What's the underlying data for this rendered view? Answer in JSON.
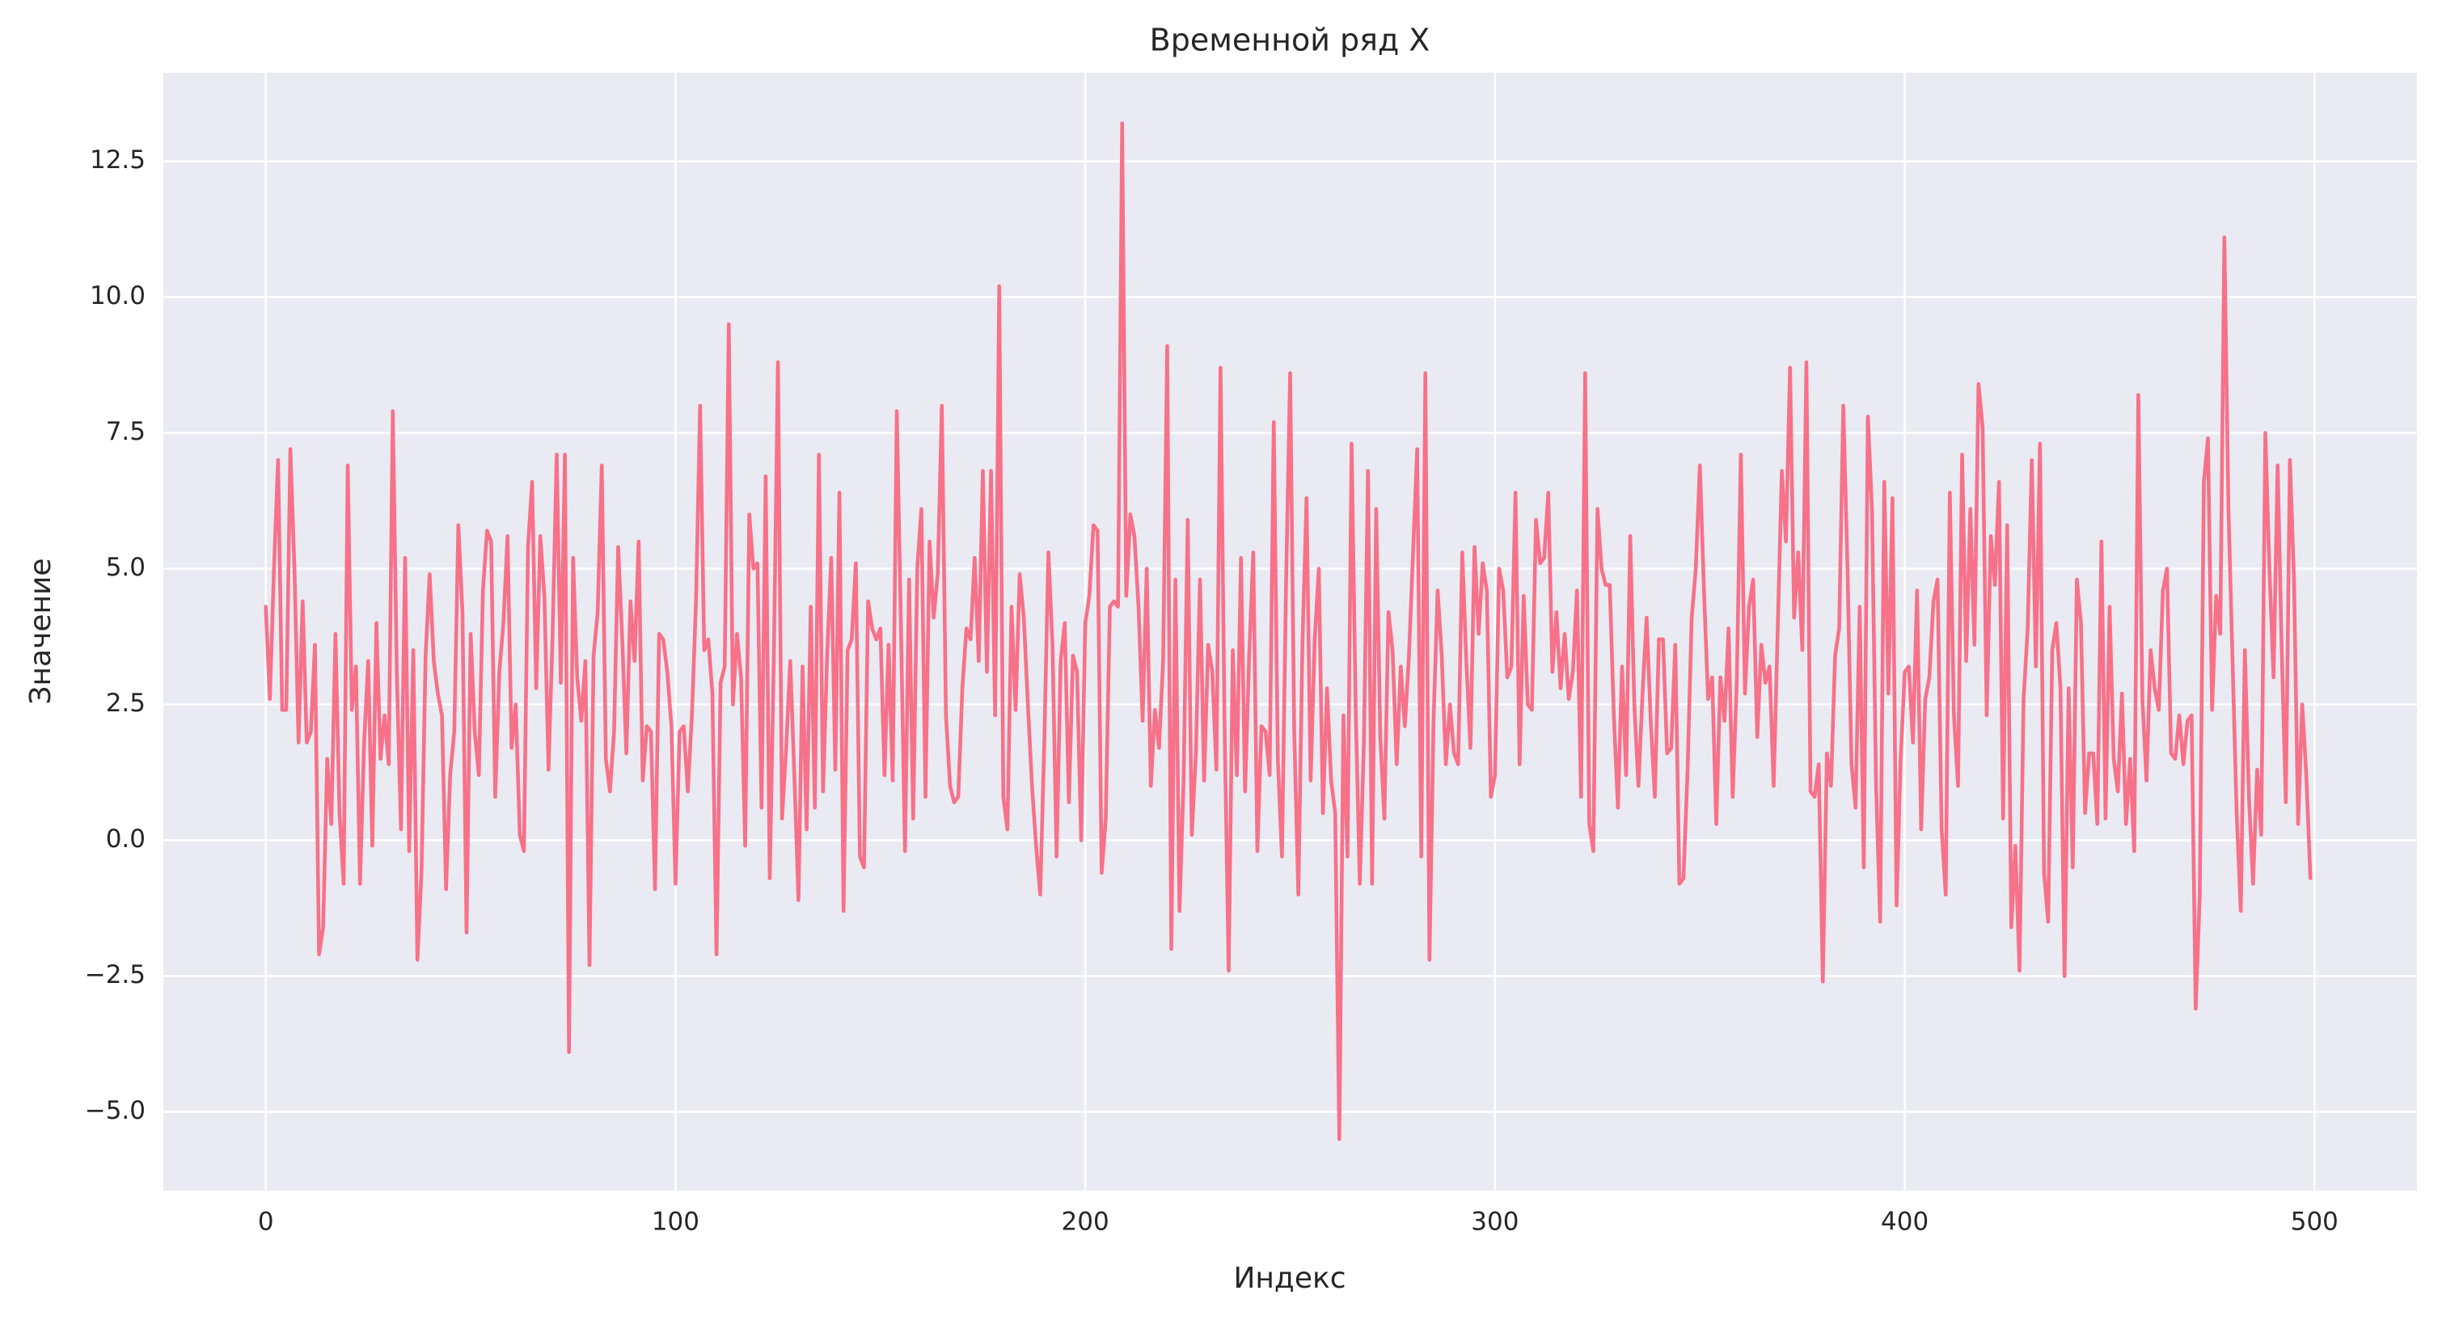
{
  "chart_data": {
    "type": "line",
    "title": "Временной ряд X",
    "x_label": "Индекс",
    "y_label": "Значение",
    "color": "#f77189",
    "grid": true,
    "background": "#eaeaf2",
    "xlim": [
      -25,
      525
    ],
    "ylim": [
      -6.45,
      14.13
    ],
    "xticks": [
      0,
      100,
      200,
      300,
      400,
      500
    ],
    "yticks": [
      {
        "value": -5,
        "label": "−5.0"
      },
      {
        "value": -2.5,
        "label": "−2.5"
      },
      {
        "value": 0,
        "label": "0.0"
      },
      2.5,
      {
        "value": 5,
        "label": "5.0"
      },
      7.5,
      {
        "value": 10,
        "label": "10.0"
      },
      12.5
    ],
    "x": [
      0,
      1,
      2,
      3,
      4,
      5,
      6,
      7,
      8,
      9,
      10,
      11,
      12,
      13,
      14,
      15,
      16,
      17,
      18,
      19,
      20,
      21,
      22,
      23,
      24,
      25,
      26,
      27,
      28,
      29,
      30,
      31,
      32,
      33,
      34,
      35,
      36,
      37,
      38,
      39,
      40,
      41,
      42,
      43,
      44,
      45,
      46,
      47,
      48,
      49,
      50,
      51,
      52,
      53,
      54,
      55,
      56,
      57,
      58,
      59,
      60,
      61,
      62,
      63,
      64,
      65,
      66,
      67,
      68,
      69,
      70,
      71,
      72,
      73,
      74,
      75,
      76,
      77,
      78,
      79,
      80,
      81,
      82,
      83,
      84,
      85,
      86,
      87,
      88,
      89,
      90,
      91,
      92,
      93,
      94,
      95,
      96,
      97,
      98,
      99,
      100,
      101,
      102,
      103,
      104,
      105,
      106,
      107,
      108,
      109,
      110,
      111,
      112,
      113,
      114,
      115,
      116,
      117,
      118,
      119,
      120,
      121,
      122,
      123,
      124,
      125,
      126,
      127,
      128,
      129,
      130,
      131,
      132,
      133,
      134,
      135,
      136,
      137,
      138,
      139,
      140,
      141,
      142,
      143,
      144,
      145,
      146,
      147,
      148,
      149,
      150,
      151,
      152,
      153,
      154,
      155,
      156,
      157,
      158,
      159,
      160,
      161,
      162,
      163,
      164,
      165,
      166,
      167,
      168,
      169,
      170,
      171,
      172,
      173,
      174,
      175,
      176,
      177,
      178,
      179,
      180,
      181,
      182,
      183,
      184,
      185,
      186,
      187,
      188,
      189,
      190,
      191,
      192,
      193,
      194,
      195,
      196,
      197,
      198,
      199,
      200,
      201,
      202,
      203,
      204,
      205,
      206,
      207,
      208,
      209,
      210,
      211,
      212,
      213,
      214,
      215,
      216,
      217,
      218,
      219,
      220,
      221,
      222,
      223,
      224,
      225,
      226,
      227,
      228,
      229,
      230,
      231,
      232,
      233,
      234,
      235,
      236,
      237,
      238,
      239,
      240,
      241,
      242,
      243,
      244,
      245,
      246,
      247,
      248,
      249,
      250,
      251,
      252,
      253,
      254,
      255,
      256,
      257,
      258,
      259,
      260,
      261,
      262,
      263,
      264,
      265,
      266,
      267,
      268,
      269,
      270,
      271,
      272,
      273,
      274,
      275,
      276,
      277,
      278,
      279,
      280,
      281,
      282,
      283,
      284,
      285,
      286,
      287,
      288,
      289,
      290,
      291,
      292,
      293,
      294,
      295,
      296,
      297,
      298,
      299,
      300,
      301,
      302,
      303,
      304,
      305,
      306,
      307,
      308,
      309,
      310,
      311,
      312,
      313,
      314,
      315,
      316,
      317,
      318,
      319,
      320,
      321,
      322,
      323,
      324,
      325,
      326,
      327,
      328,
      329,
      330,
      331,
      332,
      333,
      334,
      335,
      336,
      337,
      338,
      339,
      340,
      341,
      342,
      343,
      344,
      345,
      346,
      347,
      348,
      349,
      350,
      351,
      352,
      353,
      354,
      355,
      356,
      357,
      358,
      359,
      360,
      361,
      362,
      363,
      364,
      365,
      366,
      367,
      368,
      369,
      370,
      371,
      372,
      373,
      374,
      375,
      376,
      377,
      378,
      379,
      380,
      381,
      382,
      383,
      384,
      385,
      386,
      387,
      388,
      389,
      390,
      391,
      392,
      393,
      394,
      395,
      396,
      397,
      398,
      399,
      400,
      401,
      402,
      403,
      404,
      405,
      406,
      407,
      408,
      409,
      410,
      411,
      412,
      413,
      414,
      415,
      416,
      417,
      418,
      419,
      420,
      421,
      422,
      423,
      424,
      425,
      426,
      427,
      428,
      429,
      430,
      431,
      432,
      433,
      434,
      435,
      436,
      437,
      438,
      439,
      440,
      441,
      442,
      443,
      444,
      445,
      446,
      447,
      448,
      449,
      450,
      451,
      452,
      453,
      454,
      455,
      456,
      457,
      458,
      459,
      460,
      461,
      462,
      463,
      464,
      465,
      466,
      467,
      468,
      469,
      470,
      471,
      472,
      473,
      474,
      475,
      476,
      477,
      478,
      479,
      480,
      481,
      482,
      483,
      484,
      485,
      486,
      487,
      488,
      489,
      490,
      491,
      492,
      493,
      494,
      495,
      496,
      497,
      498,
      499
    ],
    "values": [
      4.3,
      2.6,
      5.0,
      7.0,
      2.4,
      2.4,
      7.2,
      5.0,
      1.8,
      4.4,
      1.8,
      2.0,
      3.6,
      -2.1,
      -1.6,
      1.5,
      0.3,
      3.8,
      0.5,
      -0.8,
      6.9,
      2.4,
      3.2,
      -0.8,
      1.8,
      3.3,
      -0.1,
      4.0,
      1.5,
      2.3,
      1.4,
      7.9,
      3.0,
      0.2,
      5.2,
      -0.2,
      3.5,
      -2.2,
      -0.6,
      3.4,
      4.9,
      3.3,
      2.7,
      2.3,
      -0.9,
      1.2,
      2.0,
      5.8,
      4.2,
      -1.7,
      3.8,
      2.0,
      1.2,
      4.6,
      5.7,
      5.5,
      0.8,
      3.1,
      4.0,
      5.6,
      1.7,
      2.5,
      0.1,
      -0.2,
      5.4,
      6.6,
      2.8,
      5.6,
      4.5,
      1.3,
      3.8,
      7.1,
      2.9,
      7.1,
      -3.9,
      5.2,
      3.0,
      2.2,
      3.3,
      -2.3,
      3.4,
      4.2,
      6.9,
      1.5,
      0.9,
      2.0,
      5.4,
      3.7,
      1.6,
      4.4,
      3.3,
      5.5,
      1.1,
      2.1,
      2.0,
      -0.9,
      3.8,
      3.7,
      3.1,
      2.1,
      -0.8,
      2.0,
      2.1,
      0.9,
      2.3,
      4.4,
      8.0,
      3.5,
      3.7,
      2.7,
      -2.1,
      2.9,
      3.2,
      9.5,
      2.5,
      3.8,
      3.0,
      -0.1,
      6.0,
      5.0,
      5.1,
      0.6,
      6.7,
      -0.7,
      3.4,
      8.8,
      0.4,
      1.7,
      3.3,
      1.2,
      -1.1,
      3.2,
      0.2,
      4.3,
      0.6,
      7.1,
      0.9,
      3.4,
      5.2,
      1.3,
      6.4,
      -1.3,
      3.5,
      3.7,
      5.1,
      -0.3,
      -0.5,
      4.4,
      3.9,
      3.7,
      3.9,
      1.2,
      3.6,
      1.1,
      7.9,
      4.0,
      -0.2,
      4.8,
      0.4,
      5.0,
      6.1,
      0.8,
      5.5,
      4.1,
      4.9,
      8.0,
      2.3,
      1.0,
      0.7,
      0.8,
      2.8,
      3.9,
      3.7,
      5.2,
      3.3,
      6.8,
      3.1,
      6.8,
      2.3,
      10.2,
      0.8,
      0.2,
      4.3,
      2.4,
      4.9,
      4.1,
      2.5,
      1.0,
      -0.1,
      -1.0,
      1.8,
      5.3,
      3.6,
      -0.3,
      3.3,
      4.0,
      0.7,
      3.4,
      3.1,
      0.0,
      4.0,
      4.5,
      5.8,
      5.7,
      -0.6,
      0.4,
      4.3,
      4.4,
      4.3,
      13.2,
      4.5,
      6.0,
      5.6,
      4.3,
      2.2,
      5.0,
      1.0,
      2.4,
      1.7,
      3.3,
      9.1,
      -2.0,
      4.8,
      -1.3,
      1.1,
      5.9,
      0.1,
      1.6,
      4.8,
      1.1,
      3.6,
      3.1,
      1.3,
      8.7,
      2.1,
      -2.4,
      3.5,
      1.2,
      5.2,
      0.9,
      3.4,
      5.3,
      -0.2,
      2.1,
      2.0,
      1.2,
      7.7,
      1.5,
      -0.3,
      4.7,
      8.6,
      2.0,
      -1.0,
      3.6,
      6.3,
      1.1,
      3.7,
      5.0,
      0.5,
      2.8,
      1.1,
      0.5,
      -5.5,
      2.3,
      -0.3,
      7.3,
      2.4,
      -0.8,
      1.8,
      6.8,
      -0.8,
      6.1,
      1.9,
      0.4,
      4.2,
      3.5,
      1.4,
      3.2,
      2.1,
      3.4,
      5.3,
      7.2,
      -0.3,
      8.6,
      -2.2,
      2.2,
      4.6,
      3.4,
      1.4,
      2.5,
      1.6,
      1.4,
      5.3,
      3.3,
      1.7,
      5.4,
      3.8,
      5.1,
      4.6,
      0.8,
      1.2,
      5.0,
      4.6,
      3.0,
      3.2,
      6.4,
      1.4,
      4.5,
      2.5,
      2.4,
      5.9,
      5.1,
      5.2,
      6.4,
      3.1,
      4.2,
      2.8,
      3.8,
      2.6,
      3.1,
      4.6,
      0.8,
      8.6,
      0.3,
      -0.2,
      6.1,
      5.0,
      4.7,
      4.7,
      2.3,
      0.6,
      3.2,
      1.2,
      5.6,
      2.5,
      1.0,
      2.7,
      4.1,
      2.2,
      0.8,
      3.7,
      3.7,
      1.6,
      1.7,
      3.6,
      -0.8,
      -0.7,
      1.3,
      4.1,
      5.0,
      6.9,
      4.6,
      2.6,
      3.0,
      0.3,
      3.0,
      2.2,
      3.9,
      0.8,
      2.9,
      7.1,
      2.7,
      4.3,
      4.8,
      1.9,
      3.6,
      2.9,
      3.2,
      1.0,
      3.9,
      6.8,
      5.5,
      8.7,
      4.1,
      5.3,
      3.5,
      8.8,
      0.9,
      0.8,
      1.4,
      -2.6,
      1.6,
      1.0,
      3.4,
      3.9,
      8.0,
      5.1,
      1.4,
      0.6,
      4.3,
      -0.5,
      7.8,
      6.1,
      1.0,
      -1.5,
      6.6,
      2.7,
      6.3,
      -1.2,
      1.5,
      3.1,
      3.2,
      1.8,
      4.6,
      0.2,
      2.6,
      3.0,
      4.4,
      4.8,
      0.2,
      -1.0,
      6.4,
      2.3,
      1.0,
      7.1,
      3.3,
      6.1,
      3.6,
      8.4,
      7.6,
      2.3,
      5.6,
      4.7,
      6.6,
      0.4,
      5.8,
      -1.6,
      -0.1,
      -2.4,
      2.6,
      3.9,
      7.0,
      3.2,
      7.3,
      -0.6,
      -1.5,
      3.5,
      4.0,
      2.8,
      -2.5,
      2.8,
      -0.5,
      4.8,
      4.0,
      0.5,
      1.6,
      1.6,
      0.3,
      5.5,
      0.4,
      4.3,
      1.5,
      0.9,
      2.7,
      0.3,
      1.5,
      -0.2,
      8.2,
      2.6,
      1.1,
      3.5,
      2.8,
      2.4,
      4.6,
      5.0,
      1.6,
      1.5,
      2.3,
      1.4,
      2.2,
      2.3,
      -3.1,
      -1.0,
      6.6,
      7.4,
      2.4,
      4.5,
      3.8,
      11.1,
      6.1,
      3.3,
      0.5,
      -1.3,
      3.5,
      0.8,
      -0.8,
      1.3,
      0.1,
      7.5,
      5.0,
      3.0,
      6.9,
      3.5,
      0.7,
      7.0,
      4.8,
      0.3,
      2.5,
      1.2,
      -0.7
    ]
  }
}
